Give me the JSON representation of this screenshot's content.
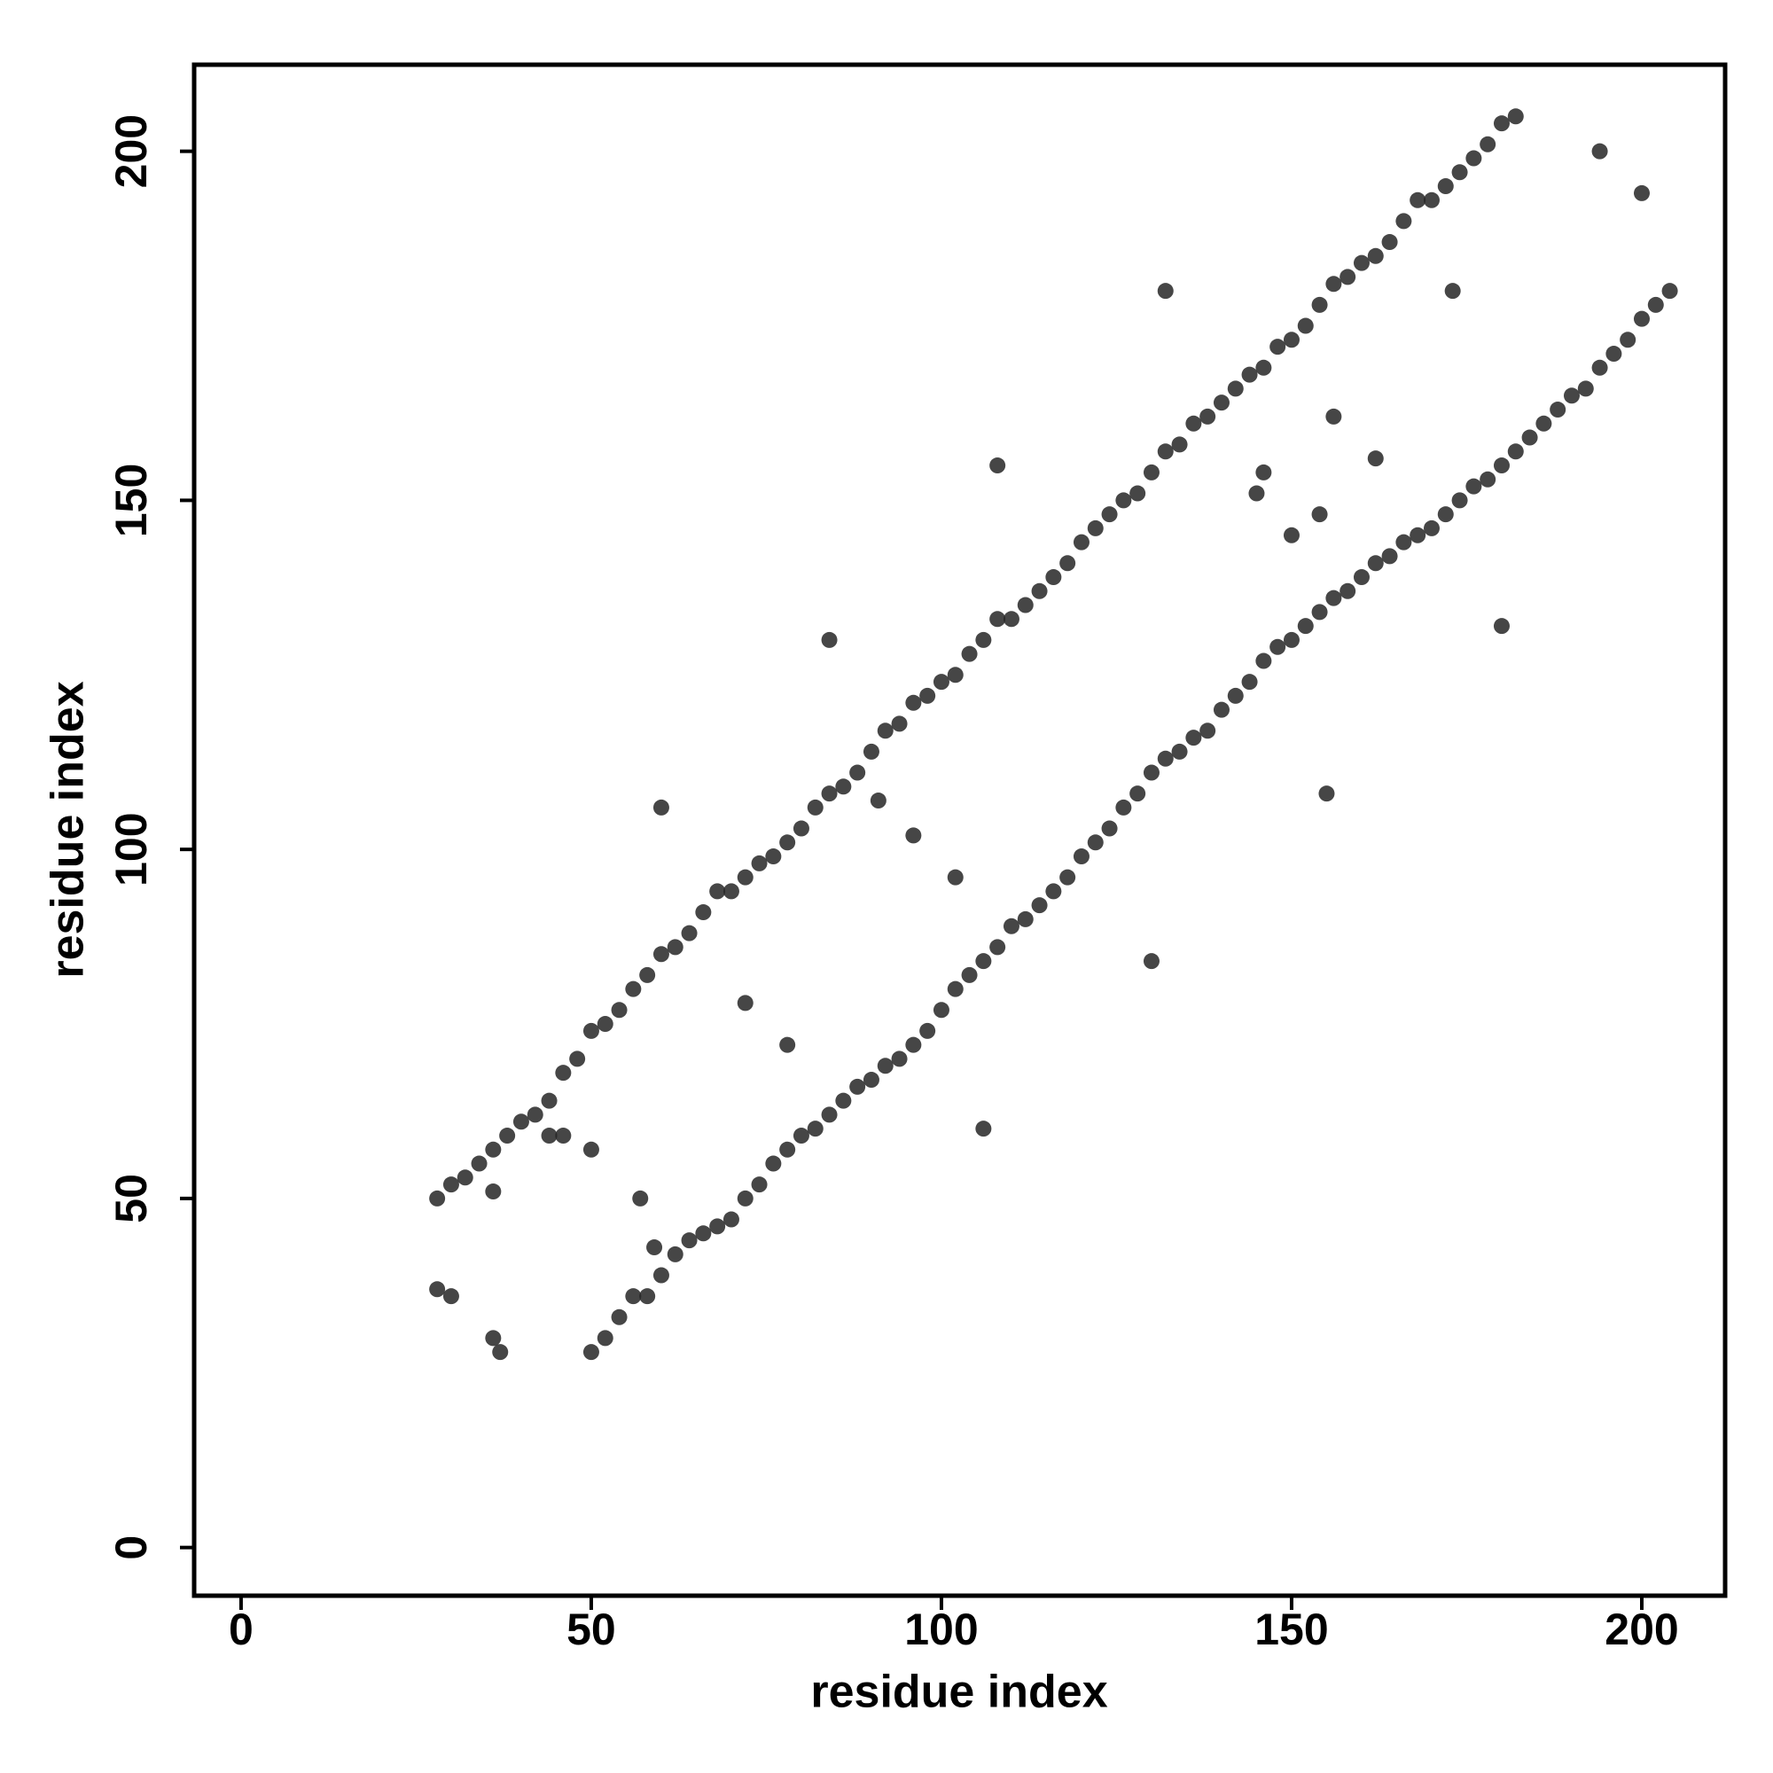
{
  "chart_data": {
    "type": "scatter",
    "xlabel": "residue index",
    "ylabel": "residue index",
    "color": "#262626",
    "xlim": [
      -6.7,
      211.9
    ],
    "ylim": [
      -6.9,
      212.4
    ],
    "xticks": [
      0,
      50,
      100,
      150,
      200
    ],
    "yticks": [
      0,
      50,
      100,
      150,
      200
    ],
    "x": [
      28,
      30,
      32,
      34,
      36,
      38,
      40,
      42,
      44,
      46,
      48,
      50,
      52,
      54,
      56,
      58,
      60,
      62,
      64,
      66,
      68,
      70,
      72,
      74,
      76,
      78,
      80,
      82,
      84,
      86,
      88,
      90,
      92,
      94,
      96,
      98,
      100,
      102,
      104,
      106,
      108,
      110,
      112,
      114,
      116,
      118,
      120,
      122,
      124,
      126,
      128,
      130,
      132,
      134,
      136,
      138,
      140,
      142,
      144,
      146,
      148,
      150,
      152,
      154,
      156,
      158,
      160,
      162,
      164,
      166,
      168,
      170,
      172,
      174,
      176,
      178,
      180,
      182,
      50,
      52,
      54,
      56,
      58,
      60,
      62,
      64,
      66,
      68,
      70,
      72,
      74,
      76,
      78,
      80,
      82,
      84,
      86,
      88,
      90,
      92,
      94,
      96,
      98,
      100,
      102,
      104,
      106,
      108,
      110,
      112,
      114,
      116,
      118,
      120,
      122,
      124,
      126,
      128,
      130,
      132,
      134,
      136,
      138,
      140,
      142,
      144,
      146,
      148,
      150,
      152,
      154,
      156,
      158,
      160,
      162,
      164,
      166,
      168,
      170,
      172,
      174,
      176,
      178,
      180,
      182,
      184,
      186,
      188,
      190,
      192,
      194,
      196,
      198,
      200,
      202,
      204,
      28,
      30,
      36,
      37,
      36,
      44,
      46,
      50,
      57,
      59,
      60,
      72,
      78,
      84,
      91,
      96,
      102,
      106,
      108,
      130,
      132,
      145,
      146,
      150,
      154,
      155,
      156,
      162,
      173,
      180,
      194,
      200
    ],
    "y": [
      50,
      52,
      53,
      55,
      57,
      59,
      61,
      62,
      64,
      68,
      70,
      74,
      75,
      77,
      80,
      82,
      85,
      86,
      88,
      91,
      94,
      94,
      96,
      98,
      99,
      101,
      103,
      106,
      108,
      109,
      111,
      114,
      117,
      118,
      121,
      122,
      124,
      125,
      128,
      130,
      133,
      133,
      135,
      137,
      139,
      141,
      144,
      146,
      148,
      150,
      151,
      154,
      157,
      158,
      161,
      162,
      164,
      166,
      168,
      169,
      172,
      173,
      175,
      178,
      181,
      182,
      184,
      185,
      187,
      190,
      193,
      193,
      195,
      197,
      199,
      201,
      204,
      205,
      28,
      30,
      33,
      36,
      36,
      39,
      42,
      44,
      45,
      46,
      47,
      50,
      52,
      55,
      57,
      59,
      60,
      62,
      64,
      66,
      67,
      69,
      70,
      72,
      74,
      77,
      80,
      82,
      84,
      86,
      89,
      90,
      92,
      94,
      96,
      99,
      101,
      103,
      106,
      108,
      111,
      113,
      114,
      116,
      117,
      120,
      122,
      124,
      127,
      129,
      130,
      132,
      134,
      136,
      137,
      139,
      141,
      142,
      144,
      145,
      146,
      148,
      150,
      152,
      153,
      155,
      157,
      159,
      161,
      163,
      165,
      166,
      169,
      171,
      173,
      176,
      178,
      180,
      37,
      36,
      30,
      28,
      51,
      59,
      59,
      57,
      50,
      43,
      106,
      78,
      72,
      130,
      107,
      102,
      96,
      60,
      155,
      84,
      180,
      151,
      154,
      145,
      148,
      108,
      162,
      156,
      180,
      132,
      200,
      194
    ]
  }
}
